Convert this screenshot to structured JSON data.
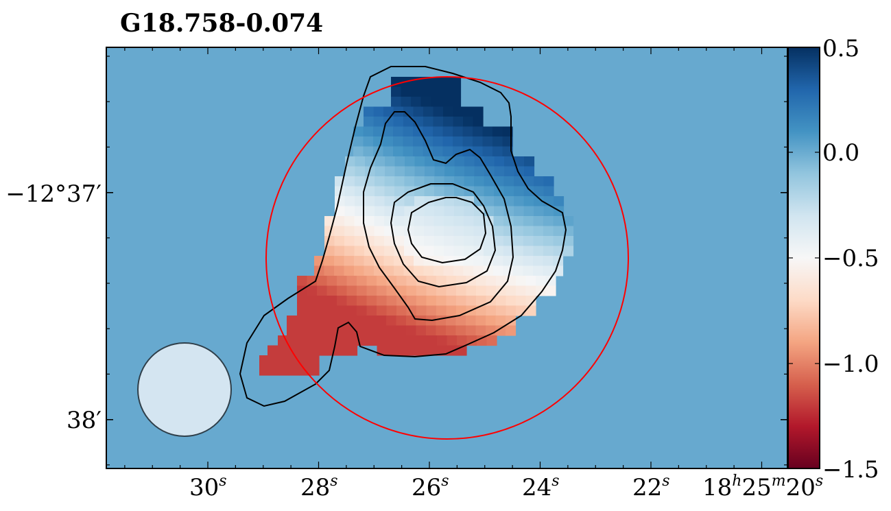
{
  "chart_data": {
    "type": "heatmap",
    "title": "G18.758-0.074",
    "xlabel": "",
    "ylabel": "",
    "x_ticks": [
      {
        "label": "30",
        "sup": "s"
      },
      {
        "label": "28",
        "sup": "s"
      },
      {
        "label": "26",
        "sup": "s"
      },
      {
        "label": "24",
        "sup": "s"
      },
      {
        "label": "22",
        "sup": "s"
      },
      {
        "label": "18h25m20s",
        "parts": [
          "18",
          "h",
          "25",
          "m",
          "20",
          "s"
        ]
      }
    ],
    "y_ticks": [
      {
        "label": "−12°37′"
      },
      {
        "label": "38′"
      }
    ],
    "colorbar": {
      "colormap": "RdBu",
      "range": [
        -1.5,
        0.5
      ],
      "ticks": [
        "0.5",
        "0.0",
        "−0.5",
        "−1.0",
        "−1.5"
      ],
      "tick_values": [
        0.5,
        0.0,
        -0.5,
        -1.0,
        -1.5
      ]
    },
    "background_value": 0.0,
    "map_extent_note": "Velocity gradient across source: high (~0.5) in the north-east, ~-0.4 at the centre, ~-1.0 in the south-west.",
    "contour_levels": 4,
    "aperture_circle_color": "#ff0000",
    "beam_color": "#d4e5f1",
    "colors": {
      "background_cell": "#67a9cf",
      "contour": "#000000"
    }
  }
}
